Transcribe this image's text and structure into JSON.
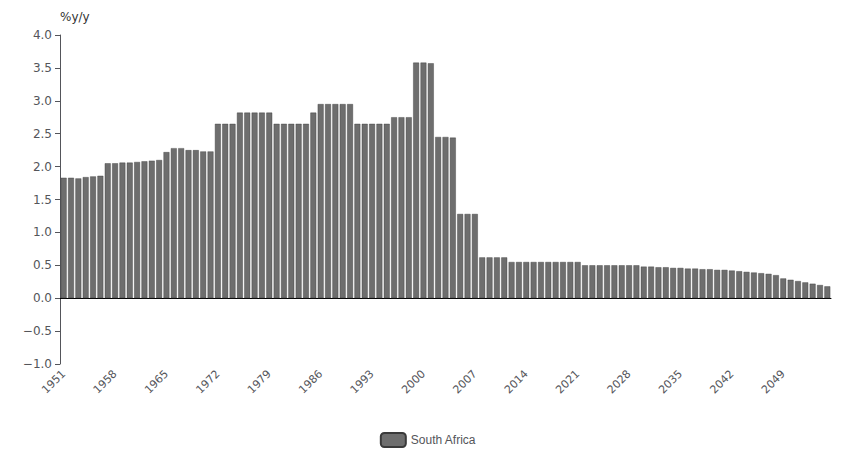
{
  "chart_data": {
    "type": "bar",
    "ylabel": "%y/y",
    "categories": [
      1951,
      null,
      null,
      null,
      null,
      null,
      null,
      1958,
      null,
      null,
      null,
      null,
      null,
      null,
      1965,
      null,
      null,
      null,
      null,
      null,
      null,
      1972,
      null,
      null,
      null,
      null,
      null,
      null,
      1979,
      null,
      null,
      null,
      null,
      null,
      null,
      1986,
      null,
      null,
      null,
      null,
      null,
      null,
      1993,
      null,
      null,
      null,
      null,
      null,
      null,
      2000,
      null,
      null,
      null,
      null,
      null,
      null,
      2007,
      null,
      null,
      null,
      null,
      null,
      null,
      2014,
      null,
      null,
      null,
      null,
      null,
      null,
      2021,
      null,
      null,
      null,
      null,
      null,
      null,
      2028,
      null,
      null,
      null,
      null,
      null,
      null,
      2035,
      null,
      null,
      null,
      null,
      null,
      null,
      2042,
      null,
      null,
      null,
      null,
      null,
      null,
      2049,
      null,
      null,
      null,
      null,
      null,
      null
    ],
    "series": [
      {
        "name": "South Africa",
        "color": "#6e6e6e",
        "values": [
          1.83,
          1.83,
          1.82,
          1.84,
          1.85,
          1.86,
          2.05,
          2.05,
          2.06,
          2.06,
          2.07,
          2.08,
          2.09,
          2.1,
          2.22,
          2.28,
          2.28,
          2.25,
          2.25,
          2.23,
          2.23,
          2.65,
          2.65,
          2.65,
          2.82,
          2.82,
          2.82,
          2.82,
          2.82,
          2.65,
          2.65,
          2.65,
          2.65,
          2.65,
          2.82,
          2.95,
          2.95,
          2.95,
          2.95,
          2.95,
          2.65,
          2.65,
          2.65,
          2.65,
          2.65,
          2.75,
          2.75,
          2.75,
          3.58,
          3.58,
          3.57,
          2.45,
          2.45,
          2.44,
          1.28,
          1.28,
          1.28,
          0.62,
          0.62,
          0.62,
          0.62,
          0.55,
          0.55,
          0.55,
          0.55,
          0.55,
          0.55,
          0.55,
          0.55,
          0.55,
          0.55,
          0.5,
          0.5,
          0.5,
          0.5,
          0.5,
          0.5,
          0.5,
          0.5,
          0.48,
          0.48,
          0.47,
          0.47,
          0.46,
          0.46,
          0.45,
          0.45,
          0.44,
          0.44,
          0.43,
          0.43,
          0.42,
          0.41,
          0.4,
          0.39,
          0.38,
          0.37,
          0.35,
          0.3,
          0.28,
          0.26,
          0.24,
          0.22,
          0.2,
          0.18
        ]
      }
    ],
    "ylim": [
      -1.0,
      4.0
    ],
    "yticks": [
      {
        "value": -1.0,
        "label": "−1.0"
      },
      {
        "value": -0.5,
        "label": "−0.5"
      },
      {
        "value": 0.0,
        "label": "0.0"
      },
      0.5,
      {
        "value": 1.0,
        "label": "1.0"
      },
      1.5,
      {
        "value": 2.0,
        "label": "2.0"
      },
      2.5,
      {
        "value": 3.0,
        "label": "3.0"
      },
      3.5,
      {
        "value": 4.0,
        "label": "4.0"
      }
    ],
    "grid": false,
    "legend": "bottom"
  }
}
